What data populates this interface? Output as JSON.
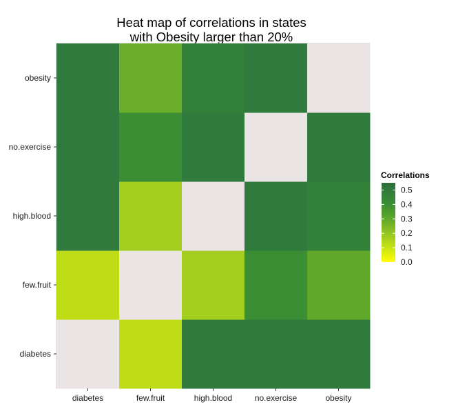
{
  "chart_data": {
    "type": "heatmap",
    "title_lines": [
      "Heat map of correlations in states",
      "with Obesity larger than 20%"
    ],
    "x_categories": [
      "diabetes",
      "few.fruit",
      "high.blood",
      "no.exercise",
      "obesity"
    ],
    "y_categories": [
      "diabetes",
      "few.fruit",
      "high.blood",
      "no.exercise",
      "obesity"
    ],
    "xlabel": "",
    "ylabel": "",
    "cells": [
      [
        null,
        0.12,
        0.5,
        0.5,
        0.5
      ],
      [
        0.12,
        null,
        0.17,
        0.4,
        0.3
      ],
      [
        0.5,
        0.17,
        null,
        0.5,
        0.47
      ],
      [
        0.5,
        0.4,
        0.5,
        null,
        0.5
      ],
      [
        0.5,
        0.28,
        0.47,
        0.5,
        null
      ]
    ],
    "na_color": "#ebe4e4",
    "color_scale": {
      "domain": [
        0.0,
        0.1,
        0.2,
        0.3,
        0.4,
        0.5,
        0.55
      ],
      "colors": [
        "#ffff00",
        "#c8e314",
        "#94c524",
        "#60a82a",
        "#3b8e33",
        "#2f7a3c",
        "#2e6e38"
      ]
    },
    "legend": {
      "title": "Correlations",
      "ticks": [
        "0.5",
        "0.4",
        "0.3",
        "0.2",
        "0.1",
        "0.0"
      ],
      "tick_values": [
        0.5,
        0.4,
        0.3,
        0.2,
        0.1,
        0.0
      ],
      "range": [
        0.0,
        0.55
      ],
      "position": "right"
    },
    "grid": true
  }
}
